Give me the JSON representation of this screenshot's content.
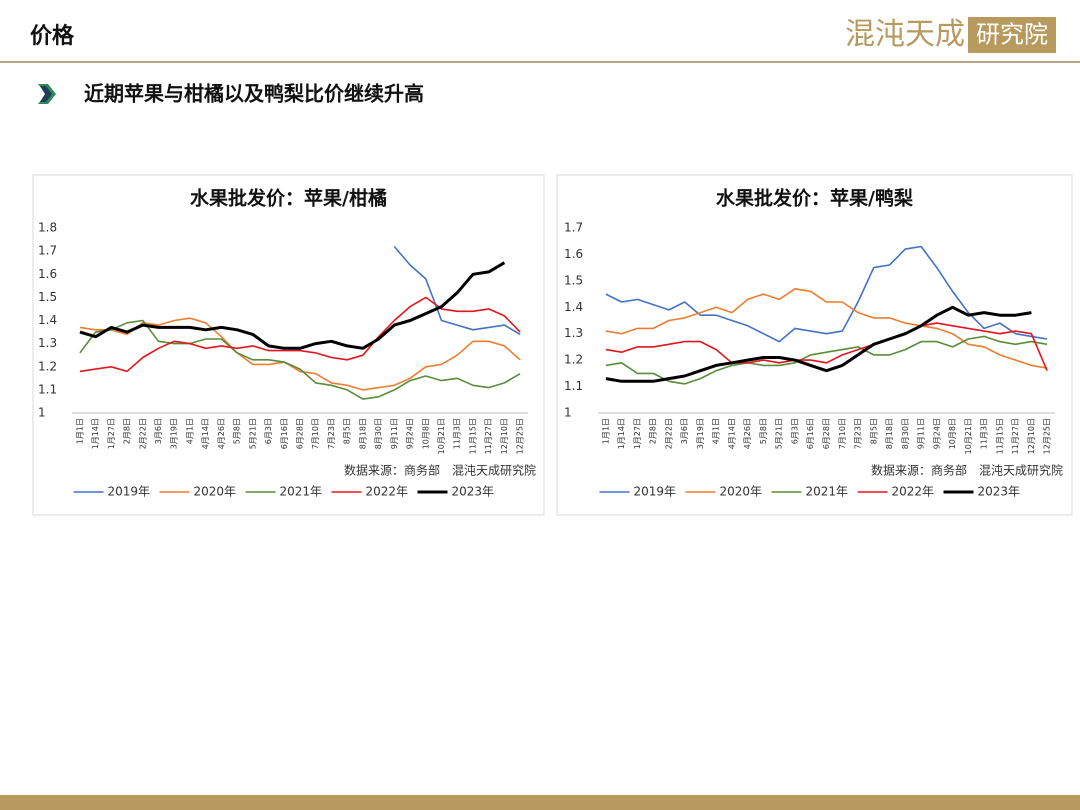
{
  "header": {
    "title": "价格",
    "logo_main": "混沌天成",
    "logo_box": "研究院",
    "subtitle": "近期苹果与柑橘以及鸭梨比价继续升高"
  },
  "chart_data": [
    {
      "type": "line",
      "title": "水果批发价：苹果/柑橘",
      "source": "数据来源：商务部　混沌天成研究院",
      "categories": [
        "1月1日",
        "1月14日",
        "1月27日",
        "2月8日",
        "2月22日",
        "3月6日",
        "3月19日",
        "4月1日",
        "4月14日",
        "4月26日",
        "5月8日",
        "5月21日",
        "6月3日",
        "6月16日",
        "6月28日",
        "7月10日",
        "7月23日",
        "8月5日",
        "8月18日",
        "8月30日",
        "9月11日",
        "9月24日",
        "10月8日",
        "10月21日",
        "11月3日",
        "11月15日",
        "11月27日",
        "12月10日",
        "12月25日"
      ],
      "ylim": [
        1,
        1.8
      ],
      "yticks": [
        1,
        1.1,
        1.2,
        1.3,
        1.4,
        1.5,
        1.6,
        1.7,
        1.8
      ],
      "series": [
        {
          "name": "2019年",
          "color": "#4472c4",
          "width": 1.6,
          "values": [
            null,
            null,
            null,
            null,
            null,
            null,
            null,
            null,
            null,
            null,
            null,
            null,
            null,
            null,
            null,
            null,
            null,
            null,
            null,
            null,
            1.72,
            1.64,
            1.58,
            1.4,
            1.38,
            1.36,
            1.37,
            1.38,
            1.34
          ]
        },
        {
          "name": "2020年",
          "color": "#ed7d31",
          "width": 1.6,
          "values": [
            1.37,
            1.36,
            1.36,
            1.34,
            1.39,
            1.38,
            1.4,
            1.41,
            1.39,
            1.33,
            1.26,
            1.21,
            1.21,
            1.22,
            1.18,
            1.17,
            1.13,
            1.12,
            1.1,
            1.11,
            1.12,
            1.15,
            1.2,
            1.21,
            1.25,
            1.31,
            1.31,
            1.29,
            1.23
          ]
        },
        {
          "name": "2021年",
          "color": "#5b8c3a",
          "width": 1.6,
          "values": [
            1.26,
            1.35,
            1.36,
            1.39,
            1.4,
            1.31,
            1.3,
            1.3,
            1.32,
            1.32,
            1.26,
            1.23,
            1.23,
            1.22,
            1.19,
            1.13,
            1.12,
            1.1,
            1.06,
            1.07,
            1.1,
            1.14,
            1.16,
            1.14,
            1.15,
            1.12,
            1.11,
            1.13,
            1.17
          ]
        },
        {
          "name": "2022年",
          "color": "#e3161e",
          "width": 1.6,
          "values": [
            1.18,
            1.19,
            1.2,
            1.18,
            1.24,
            1.28,
            1.31,
            1.3,
            1.28,
            1.29,
            1.28,
            1.29,
            1.27,
            1.27,
            1.27,
            1.26,
            1.24,
            1.23,
            1.25,
            1.33,
            1.4,
            1.46,
            1.5,
            1.45,
            1.44,
            1.44,
            1.45,
            1.42,
            1.35
          ]
        },
        {
          "name": "2023年",
          "color": "#000000",
          "width": 3,
          "values": [
            1.35,
            1.33,
            1.37,
            1.35,
            1.38,
            1.37,
            1.37,
            1.37,
            1.36,
            1.37,
            1.36,
            1.34,
            1.29,
            1.28,
            1.28,
            1.3,
            1.31,
            1.29,
            1.28,
            1.32,
            1.38,
            1.4,
            1.43,
            1.46,
            1.52,
            1.6,
            1.61,
            1.65,
            null
          ]
        }
      ]
    },
    {
      "type": "line",
      "title": "水果批发价：苹果/鸭梨",
      "source": "数据来源：商务部　混沌天成研究院",
      "categories": [
        "1月1日",
        "1月14日",
        "1月27日",
        "2月8日",
        "2月22日",
        "3月6日",
        "3月19日",
        "4月1日",
        "4月14日",
        "4月26日",
        "5月8日",
        "5月21日",
        "6月3日",
        "6月16日",
        "6月28日",
        "7月10日",
        "7月23日",
        "8月5日",
        "8月18日",
        "8月30日",
        "9月11日",
        "9月24日",
        "10月8日",
        "10月21日",
        "11月3日",
        "11月15日",
        "11月27日",
        "12月10日",
        "12月25日"
      ],
      "ylim": [
        1,
        1.7
      ],
      "yticks": [
        1,
        1.1,
        1.2,
        1.3,
        1.4,
        1.5,
        1.6,
        1.7
      ],
      "series": [
        {
          "name": "2019年",
          "color": "#4472c4",
          "width": 1.6,
          "values": [
            1.45,
            1.42,
            1.43,
            1.41,
            1.39,
            1.42,
            1.37,
            1.37,
            1.35,
            1.33,
            1.3,
            1.27,
            1.32,
            1.31,
            1.3,
            1.31,
            1.42,
            1.55,
            1.56,
            1.62,
            1.63,
            1.55,
            1.46,
            1.38,
            1.32,
            1.34,
            1.3,
            1.29,
            1.28
          ]
        },
        {
          "name": "2020年",
          "color": "#ed7d31",
          "width": 1.6,
          "values": [
            1.31,
            1.3,
            1.32,
            1.32,
            1.35,
            1.36,
            1.38,
            1.4,
            1.38,
            1.43,
            1.45,
            1.43,
            1.47,
            1.46,
            1.42,
            1.42,
            1.38,
            1.36,
            1.36,
            1.34,
            1.33,
            1.32,
            1.3,
            1.26,
            1.25,
            1.22,
            1.2,
            1.18,
            1.17
          ]
        },
        {
          "name": "2021年",
          "color": "#5b8c3a",
          "width": 1.6,
          "values": [
            1.18,
            1.19,
            1.15,
            1.15,
            1.12,
            1.11,
            1.13,
            1.16,
            1.18,
            1.19,
            1.18,
            1.18,
            1.19,
            1.22,
            1.23,
            1.24,
            1.25,
            1.22,
            1.22,
            1.24,
            1.27,
            1.27,
            1.25,
            1.28,
            1.29,
            1.27,
            1.26,
            1.27,
            1.26
          ]
        },
        {
          "name": "2022年",
          "color": "#e3161e",
          "width": 1.6,
          "values": [
            1.24,
            1.23,
            1.25,
            1.25,
            1.26,
            1.27,
            1.27,
            1.24,
            1.19,
            1.19,
            1.2,
            1.19,
            1.2,
            1.2,
            1.19,
            1.22,
            1.24,
            1.26,
            1.28,
            1.3,
            1.33,
            1.34,
            1.33,
            1.32,
            1.31,
            1.3,
            1.31,
            1.3,
            1.16
          ]
        },
        {
          "name": "2023年",
          "color": "#000000",
          "width": 3,
          "values": [
            1.13,
            1.12,
            1.12,
            1.12,
            1.13,
            1.14,
            1.16,
            1.18,
            1.19,
            1.2,
            1.21,
            1.21,
            1.2,
            1.18,
            1.16,
            1.18,
            1.22,
            1.26,
            1.28,
            1.3,
            1.33,
            1.37,
            1.4,
            1.37,
            1.38,
            1.37,
            1.37,
            1.38,
            null
          ]
        }
      ]
    }
  ]
}
